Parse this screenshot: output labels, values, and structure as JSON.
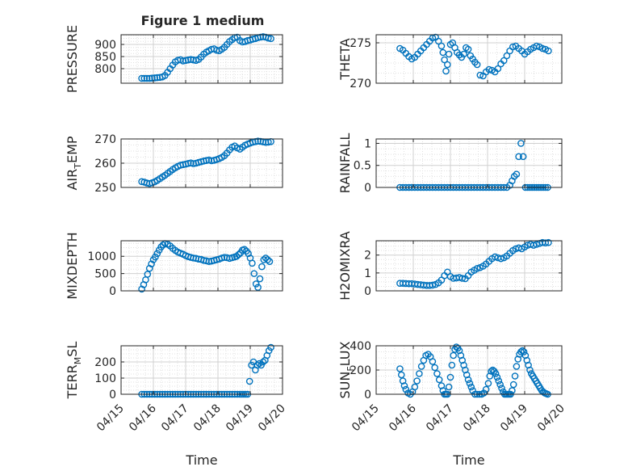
{
  "figure": {
    "title": "Figure 1 medium",
    "marker_color": "#0072BD"
  },
  "chart_data": [
    {
      "type": "scatter",
      "title": "Figure 1 medium",
      "ylabel": "PRESSURE",
      "xlabel": "",
      "xlim": [
        0,
        5
      ],
      "ylim": [
        740,
        940
      ],
      "yticks": [
        800,
        850,
        900
      ],
      "ytick_labels": [
        "800",
        "850",
        "900"
      ],
      "grid": true,
      "show_xtick_labels": false,
      "x": [
        0.64,
        0.72,
        0.8,
        0.88,
        0.96,
        1.04,
        1.12,
        1.2,
        1.28,
        1.36,
        1.44,
        1.52,
        1.6,
        1.68,
        1.76,
        1.84,
        1.92,
        2.0,
        2.08,
        2.16,
        2.24,
        2.32,
        2.4,
        2.48,
        2.56,
        2.64,
        2.72,
        2.8,
        2.88,
        2.96,
        3.04,
        3.12,
        3.2,
        3.28,
        3.36,
        3.44,
        3.52,
        3.6,
        3.68,
        3.76,
        3.84,
        3.92,
        4.0,
        4.08,
        4.16,
        4.24,
        4.32,
        4.4,
        4.48,
        4.56,
        4.64
      ],
      "y": [
        760,
        760,
        760,
        760,
        761,
        762,
        763,
        764,
        766,
        772,
        785,
        800,
        815,
        828,
        835,
        837,
        832,
        834,
        836,
        838,
        836,
        834,
        838,
        848,
        860,
        868,
        874,
        880,
        882,
        876,
        874,
        880,
        888,
        900,
        912,
        920,
        928,
        930,
        916,
        910,
        912,
        916,
        918,
        922,
        924,
        928,
        930,
        932,
        930,
        926,
        924
      ]
    },
    {
      "type": "scatter",
      "ylabel": "THETA",
      "xlabel": "",
      "xlim": [
        0,
        5
      ],
      "ylim": [
        270,
        276
      ],
      "yticks": [
        270,
        275
      ],
      "ytick_labels": [
        "270",
        "275"
      ],
      "grid": true,
      "show_xtick_labels": false,
      "x": [
        0.64,
        0.72,
        0.8,
        0.88,
        0.96,
        1.04,
        1.12,
        1.2,
        1.28,
        1.36,
        1.44,
        1.52,
        1.6,
        1.68,
        1.76,
        1.8,
        1.84,
        1.88,
        1.92,
        1.96,
        2.0,
        2.06,
        2.12,
        2.18,
        2.24,
        2.3,
        2.36,
        2.42,
        2.48,
        2.54,
        2.6,
        2.66,
        2.72,
        2.8,
        2.88,
        2.96,
        3.04,
        3.12,
        3.2,
        3.28,
        3.36,
        3.44,
        3.52,
        3.6,
        3.68,
        3.76,
        3.84,
        3.92,
        4.0,
        4.08,
        4.16,
        4.24,
        4.32,
        4.4,
        4.48,
        4.56,
        4.64
      ],
      "y": [
        274.3,
        274.1,
        273.7,
        273.3,
        273.0,
        273.2,
        273.6,
        274.0,
        274.4,
        274.8,
        275.2,
        275.6,
        275.7,
        275.2,
        274.6,
        273.8,
        272.9,
        271.5,
        272.3,
        273.6,
        274.8,
        275.0,
        274.4,
        273.8,
        273.5,
        273.2,
        273.6,
        274.4,
        274.2,
        273.4,
        273.0,
        272.6,
        272.3,
        271.0,
        270.9,
        271.4,
        271.7,
        271.6,
        271.4,
        271.8,
        272.4,
        272.8,
        273.4,
        274.0,
        274.5,
        274.6,
        274.3,
        274.0,
        273.6,
        273.9,
        274.2,
        274.4,
        274.6,
        274.5,
        274.3,
        274.2,
        274.0
      ]
    },
    {
      "type": "scatter",
      "ylabel": "AIR_TEMP",
      "ylabel_parts": [
        "AIR",
        "T",
        "EMP"
      ],
      "xlabel": "",
      "xlim": [
        0,
        5
      ],
      "ylim": [
        250,
        270
      ],
      "yticks": [
        250,
        260,
        270
      ],
      "ytick_labels": [
        "250",
        "260",
        "270"
      ],
      "grid": true,
      "show_xtick_labels": false,
      "x": [
        0.64,
        0.72,
        0.8,
        0.88,
        0.96,
        1.04,
        1.12,
        1.2,
        1.28,
        1.36,
        1.44,
        1.52,
        1.6,
        1.68,
        1.76,
        1.84,
        1.92,
        2.0,
        2.08,
        2.16,
        2.24,
        2.32,
        2.4,
        2.48,
        2.56,
        2.64,
        2.72,
        2.8,
        2.88,
        2.96,
        3.04,
        3.12,
        3.2,
        3.28,
        3.36,
        3.44,
        3.52,
        3.6,
        3.68,
        3.76,
        3.84,
        3.92,
        4.0,
        4.08,
        4.16,
        4.24,
        4.32,
        4.4,
        4.48,
        4.56,
        4.64
      ],
      "y": [
        252.4,
        252.2,
        251.8,
        251.6,
        251.9,
        252.3,
        252.9,
        253.6,
        254.3,
        255.0,
        255.8,
        256.6,
        257.4,
        258.1,
        258.7,
        259.2,
        259.4,
        259.6,
        259.9,
        260.1,
        259.8,
        260.0,
        260.3,
        260.6,
        260.9,
        261.1,
        261.3,
        261.0,
        261.2,
        261.5,
        261.9,
        262.4,
        263.1,
        264.2,
        265.5,
        266.6,
        267.1,
        266.3,
        265.8,
        266.6,
        267.4,
        267.9,
        268.3,
        268.7,
        268.9,
        269.1,
        269.0,
        268.8,
        268.6,
        268.7,
        268.9
      ]
    },
    {
      "type": "scatter",
      "ylabel": "RAINFALL",
      "xlabel": "",
      "xlim": [
        0,
        5
      ],
      "ylim": [
        0,
        1.1
      ],
      "yticks": [
        0,
        0.5,
        1
      ],
      "ytick_labels": [
        "0",
        "0.5",
        "1"
      ],
      "grid": true,
      "show_xtick_labels": false,
      "x": [
        0.64,
        0.72,
        0.8,
        0.88,
        0.96,
        1.04,
        1.12,
        1.2,
        1.28,
        1.36,
        1.44,
        1.52,
        1.6,
        1.68,
        1.76,
        1.84,
        1.92,
        2.0,
        2.08,
        2.16,
        2.24,
        2.32,
        2.4,
        2.48,
        2.56,
        2.64,
        2.72,
        2.8,
        2.88,
        2.96,
        3.04,
        3.12,
        3.2,
        3.28,
        3.36,
        3.44,
        3.52,
        3.6,
        3.66,
        3.72,
        3.78,
        3.84,
        3.9,
        3.96,
        4.02,
        4.08,
        4.14,
        4.2,
        4.26,
        4.32,
        4.38,
        4.44,
        4.5,
        4.56,
        4.62
      ],
      "y": [
        0,
        0,
        0,
        0,
        0,
        0,
        0,
        0,
        0,
        0,
        0,
        0,
        0,
        0,
        0,
        0,
        0,
        0,
        0,
        0,
        0,
        0,
        0,
        0,
        0,
        0,
        0,
        0,
        0,
        0,
        0,
        0,
        0,
        0,
        0,
        0,
        0,
        0.05,
        0.15,
        0.25,
        0.3,
        0.7,
        1.0,
        0.7,
        0,
        0,
        0,
        0,
        0,
        0,
        0,
        0,
        0,
        0,
        0
      ]
    },
    {
      "type": "scatter",
      "ylabel": "MIXDEPTH",
      "xlabel": "",
      "xlim": [
        0,
        5
      ],
      "ylim": [
        0,
        1450
      ],
      "yticks": [
        0,
        500,
        1000
      ],
      "ytick_labels": [
        "0",
        "500",
        "1000"
      ],
      "grid": true,
      "show_xtick_labels": false,
      "x": [
        0.64,
        0.7,
        0.76,
        0.82,
        0.88,
        0.94,
        1.0,
        1.06,
        1.12,
        1.18,
        1.24,
        1.3,
        1.36,
        1.44,
        1.52,
        1.6,
        1.68,
        1.76,
        1.84,
        1.92,
        2.0,
        2.08,
        2.16,
        2.24,
        2.32,
        2.4,
        2.48,
        2.56,
        2.64,
        2.72,
        2.8,
        2.88,
        2.96,
        3.04,
        3.12,
        3.2,
        3.28,
        3.36,
        3.44,
        3.52,
        3.58,
        3.64,
        3.7,
        3.76,
        3.82,
        3.88,
        3.94,
        4.0,
        4.06,
        4.12,
        4.18,
        4.24,
        4.3,
        4.36,
        4.42,
        4.48,
        4.54,
        4.6
      ],
      "y": [
        50,
        180,
        320,
        480,
        650,
        780,
        900,
        980,
        1080,
        1180,
        1270,
        1330,
        1370,
        1350,
        1300,
        1230,
        1170,
        1120,
        1090,
        1060,
        1020,
        990,
        970,
        950,
        940,
        920,
        910,
        880,
        870,
        850,
        860,
        880,
        900,
        920,
        950,
        970,
        960,
        940,
        960,
        980,
        1000,
        1050,
        1100,
        1180,
        1200,
        1150,
        1080,
        950,
        800,
        500,
        200,
        100,
        350,
        700,
        900,
        950,
        900,
        850
      ]
    },
    {
      "type": "scatter",
      "ylabel": "H2OMIXRA",
      "xlabel": "",
      "xlim": [
        0,
        5
      ],
      "ylim": [
        0,
        2.8
      ],
      "yticks": [
        0,
        1,
        2
      ],
      "ytick_labels": [
        "0",
        "1",
        "2"
      ],
      "grid": true,
      "show_xtick_labels": false,
      "x": [
        0.64,
        0.72,
        0.8,
        0.88,
        0.96,
        1.04,
        1.12,
        1.2,
        1.28,
        1.36,
        1.44,
        1.52,
        1.6,
        1.68,
        1.76,
        1.84,
        1.92,
        2.0,
        2.08,
        2.16,
        2.24,
        2.32,
        2.4,
        2.48,
        2.56,
        2.64,
        2.72,
        2.8,
        2.88,
        2.96,
        3.04,
        3.12,
        3.2,
        3.28,
        3.36,
        3.44,
        3.52,
        3.6,
        3.68,
        3.76,
        3.84,
        3.92,
        4.0,
        4.08,
        4.16,
        4.24,
        4.32,
        4.4,
        4.48,
        4.56,
        4.64
      ],
      "y": [
        0.42,
        0.42,
        0.41,
        0.4,
        0.4,
        0.38,
        0.36,
        0.34,
        0.32,
        0.3,
        0.3,
        0.32,
        0.36,
        0.45,
        0.6,
        0.85,
        1.05,
        0.8,
        0.7,
        0.72,
        0.75,
        0.7,
        0.68,
        0.85,
        1.05,
        1.15,
        1.25,
        1.3,
        1.38,
        1.5,
        1.65,
        1.8,
        1.9,
        1.85,
        1.8,
        1.85,
        1.95,
        2.1,
        2.25,
        2.35,
        2.4,
        2.35,
        2.45,
        2.55,
        2.6,
        2.55,
        2.6,
        2.65,
        2.7,
        2.68,
        2.7
      ]
    },
    {
      "type": "scatter",
      "ylabel": "TERR_MSL",
      "ylabel_parts": [
        "TERR",
        "M",
        "SL"
      ],
      "xlabel": "Time",
      "xlim": [
        0,
        5
      ],
      "ylim": [
        0,
        300
      ],
      "yticks": [
        0,
        100,
        200
      ],
      "ytick_labels": [
        "0",
        "100",
        "200"
      ],
      "grid": true,
      "show_xtick_labels": true,
      "xticks": [
        0,
        1,
        2,
        3,
        4,
        5
      ],
      "xtick_labels": [
        "04/15",
        "04/16",
        "04/17",
        "04/18",
        "04/19",
        "04/20"
      ],
      "x": [
        0.64,
        0.72,
        0.8,
        0.88,
        0.96,
        1.04,
        1.12,
        1.2,
        1.28,
        1.36,
        1.44,
        1.52,
        1.6,
        1.68,
        1.76,
        1.84,
        1.92,
        2.0,
        2.08,
        2.16,
        2.24,
        2.32,
        2.4,
        2.48,
        2.56,
        2.64,
        2.72,
        2.8,
        2.88,
        2.96,
        3.04,
        3.12,
        3.2,
        3.28,
        3.36,
        3.44,
        3.52,
        3.6,
        3.68,
        3.74,
        3.8,
        3.86,
        3.92,
        3.98,
        4.04,
        4.1,
        4.16,
        4.22,
        4.28,
        4.34,
        4.4,
        4.46,
        4.52,
        4.58,
        4.64
      ],
      "y": [
        0,
        0,
        0,
        0,
        0,
        0,
        0,
        0,
        0,
        0,
        0,
        0,
        0,
        0,
        0,
        0,
        0,
        0,
        0,
        0,
        0,
        0,
        0,
        0,
        0,
        0,
        0,
        0,
        0,
        0,
        0,
        0,
        0,
        0,
        0,
        0,
        0,
        0,
        0,
        0,
        0,
        0,
        0,
        80,
        180,
        200,
        150,
        180,
        190,
        180,
        200,
        210,
        240,
        270,
        290
      ]
    },
    {
      "type": "scatter",
      "ylabel": "SUN_FLUX",
      "ylabel_parts": [
        "SUN",
        "F",
        "LUX"
      ],
      "xlabel": "Time",
      "xlim": [
        0,
        5
      ],
      "ylim": [
        0,
        400
      ],
      "yticks": [
        0,
        200,
        400
      ],
      "ytick_labels": [
        "0",
        "200",
        "400"
      ],
      "grid": true,
      "show_xtick_labels": true,
      "xticks": [
        0,
        1,
        2,
        3,
        4,
        5
      ],
      "xtick_labels": [
        "04/15",
        "04/16",
        "04/17",
        "04/18",
        "04/19",
        "04/20"
      ],
      "x": [
        0.64,
        0.68,
        0.72,
        0.76,
        0.8,
        0.86,
        0.92,
        0.98,
        1.04,
        1.1,
        1.16,
        1.22,
        1.28,
        1.34,
        1.4,
        1.46,
        1.52,
        1.58,
        1.64,
        1.7,
        1.76,
        1.8,
        1.84,
        1.88,
        1.92,
        1.96,
        2.0,
        2.04,
        2.08,
        2.12,
        2.16,
        2.2,
        2.24,
        2.28,
        2.32,
        2.36,
        2.4,
        2.44,
        2.48,
        2.52,
        2.56,
        2.6,
        2.66,
        2.72,
        2.78,
        2.84,
        2.9,
        2.96,
        3.02,
        3.06,
        3.1,
        3.14,
        3.18,
        3.22,
        3.26,
        3.3,
        3.34,
        3.38,
        3.42,
        3.46,
        3.5,
        3.54,
        3.58,
        3.62,
        3.66,
        3.7,
        3.74,
        3.78,
        3.82,
        3.86,
        3.9,
        3.94,
        3.98,
        4.02,
        4.06,
        4.1,
        4.14,
        4.18,
        4.22,
        4.26,
        4.3,
        4.34,
        4.38,
        4.42,
        4.46,
        4.5,
        4.54,
        4.58,
        4.62
      ],
      "y": [
        210,
        160,
        110,
        70,
        40,
        10,
        0,
        20,
        60,
        110,
        170,
        230,
        280,
        320,
        330,
        310,
        270,
        220,
        170,
        120,
        70,
        30,
        0,
        0,
        0,
        60,
        140,
        240,
        320,
        370,
        390,
        380,
        360,
        320,
        280,
        240,
        200,
        160,
        120,
        90,
        60,
        30,
        0,
        0,
        0,
        0,
        10,
        40,
        90,
        150,
        190,
        200,
        190,
        170,
        140,
        110,
        80,
        50,
        20,
        0,
        0,
        0,
        0,
        0,
        30,
        80,
        150,
        230,
        290,
        330,
        350,
        360,
        350,
        320,
        280,
        240,
        200,
        170,
        150,
        130,
        110,
        90,
        70,
        50,
        30,
        20,
        10,
        5,
        0
      ]
    }
  ]
}
